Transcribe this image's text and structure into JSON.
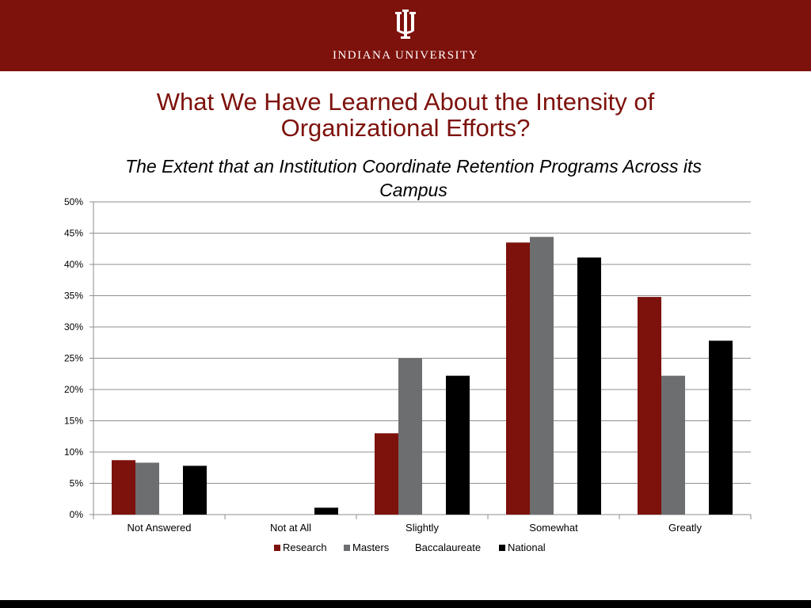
{
  "header": {
    "university_name": "INDIANA UNIVERSITY",
    "logo_icon": "iu-trident-icon",
    "colors": {
      "crimson": "#7d110c",
      "white": "#ffffff"
    }
  },
  "slide": {
    "title_line1": "What We Have Learned About the Intensity of",
    "title_line2": "Organizational Efforts?"
  },
  "chart_data": {
    "type": "bar",
    "title_line1": "The Extent that an Institution Coordinate Retention Programs Across its",
    "title_line2": "Campus",
    "categories": [
      "Not Answered",
      "Not at All",
      "Slightly",
      "Somewhat",
      "Greatly"
    ],
    "series": [
      {
        "name": "Research",
        "color": "#7d110c",
        "values": [
          8.7,
          0,
          13.0,
          43.5,
          34.8
        ]
      },
      {
        "name": "Masters",
        "color": "#6d6e70",
        "values": [
          8.3,
          0,
          25.0,
          44.4,
          22.2
        ]
      },
      {
        "name": "Baccalaureate",
        "color": "#ffffff",
        "values": [
          0,
          0,
          0,
          0,
          0
        ]
      },
      {
        "name": "National",
        "color": "#000000",
        "values": [
          7.8,
          1.1,
          22.2,
          41.1,
          27.8
        ]
      }
    ],
    "y_ticks": [
      "0%",
      "5%",
      "10%",
      "15%",
      "20%",
      "25%",
      "30%",
      "35%",
      "40%",
      "45%",
      "50%"
    ],
    "ylim": [
      0,
      50
    ],
    "grid": true,
    "legend_position": "bottom"
  }
}
